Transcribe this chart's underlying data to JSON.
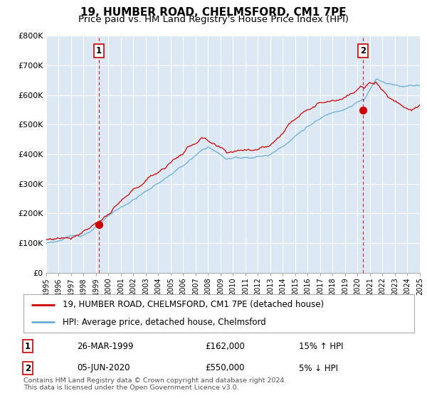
{
  "title": "19, HUMBER ROAD, CHELMSFORD, CM1 7PE",
  "subtitle": "Price paid vs. HM Land Registry's House Price Index (HPI)",
  "title_fontsize": 11,
  "subtitle_fontsize": 9.5,
  "ylim": [
    0,
    800000
  ],
  "yticks": [
    0,
    100000,
    200000,
    300000,
    400000,
    500000,
    600000,
    700000,
    800000
  ],
  "ytick_labels": [
    "£0",
    "£100K",
    "£200K",
    "£300K",
    "£400K",
    "£500K",
    "£600K",
    "£700K",
    "£800K"
  ],
  "background_color": "#ffffff",
  "plot_bg_color": "#dce9f5",
  "grid_color": "#ffffff",
  "hpi_line_color": "#6aaed6",
  "price_line_color": "#cc0000",
  "vline_color": "#cc0000",
  "sale1_year": 1999.24,
  "sale1_price": 162000,
  "sale2_year": 2020.43,
  "sale2_price": 550000,
  "footnote": "Contains HM Land Registry data © Crown copyright and database right 2024.\nThis data is licensed under the Open Government Licence v3.0.",
  "legend_entry1": "19, HUMBER ROAD, CHELMSFORD, CM1 7PE (detached house)",
  "legend_entry2": "HPI: Average price, detached house, Chelmsford",
  "table_row1_num": "1",
  "table_row1_date": "26-MAR-1999",
  "table_row1_price": "£162,000",
  "table_row1_hpi": "15% ↑ HPI",
  "table_row2_num": "2",
  "table_row2_date": "05-JUN-2020",
  "table_row2_price": "£550,000",
  "table_row2_hpi": "5% ↓ HPI",
  "xstart": 1995,
  "xend": 2025
}
